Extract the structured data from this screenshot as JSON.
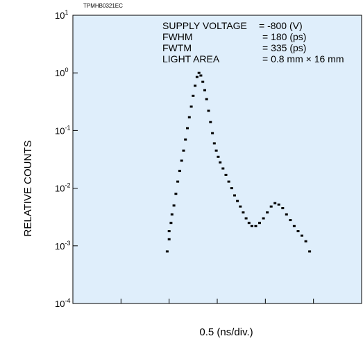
{
  "figure_code": "TPMHB0321EC",
  "annotations": [
    {
      "label": "SUPPLY VOLTAGE",
      "value": "= -800 (V)"
    },
    {
      "label": "FWHM",
      "value": "= 180 (ps)"
    },
    {
      "label": "FWTM",
      "value": "= 335 (ps)"
    },
    {
      "label": "LIGHT AREA",
      "value": "= 0.8 mm × 16 mm"
    }
  ],
  "chart_data": {
    "type": "scatter",
    "title": "",
    "xlabel": "0.5 (ns/div.)",
    "ylabel": "RELATIVE COUNTS",
    "yscale": "log",
    "ylim": [
      0.0001,
      10
    ],
    "xlim": [
      0,
      3
    ],
    "x_divisions": 6,
    "grid": false,
    "yticks": [
      {
        "base": "10",
        "exp": "1",
        "value": 10
      },
      {
        "base": "10",
        "exp": "0",
        "value": 1
      },
      {
        "base": "10",
        "exp": "-1",
        "value": 0.1
      },
      {
        "base": "10",
        "exp": "-2",
        "value": 0.01
      },
      {
        "base": "10",
        "exp": "-3",
        "value": 0.001
      },
      {
        "base": "10",
        "exp": "-4",
        "value": 0.0001
      }
    ],
    "background_color": "#dfeefb",
    "marker_color": "#000000",
    "series": [
      {
        "points": [
          [
            0.98,
            0.0008
          ],
          [
            1.0,
            0.0013
          ],
          [
            1.0,
            0.0018
          ],
          [
            1.02,
            0.0025
          ],
          [
            1.03,
            0.0035
          ],
          [
            1.05,
            0.005
          ],
          [
            1.07,
            0.008
          ],
          [
            1.09,
            0.013
          ],
          [
            1.11,
            0.02
          ],
          [
            1.13,
            0.03
          ],
          [
            1.15,
            0.045
          ],
          [
            1.17,
            0.07
          ],
          [
            1.19,
            0.11
          ],
          [
            1.21,
            0.17
          ],
          [
            1.23,
            0.26
          ],
          [
            1.25,
            0.4
          ],
          [
            1.27,
            0.6
          ],
          [
            1.29,
            0.85
          ],
          [
            1.31,
            1.0
          ],
          [
            1.33,
            0.9
          ],
          [
            1.35,
            0.7
          ],
          [
            1.37,
            0.5
          ],
          [
            1.39,
            0.35
          ],
          [
            1.41,
            0.22
          ],
          [
            1.43,
            0.14
          ],
          [
            1.45,
            0.09
          ],
          [
            1.47,
            0.06
          ],
          [
            1.49,
            0.045
          ],
          [
            1.51,
            0.035
          ],
          [
            1.53,
            0.028
          ],
          [
            1.56,
            0.022
          ],
          [
            1.59,
            0.017
          ],
          [
            1.62,
            0.013
          ],
          [
            1.65,
            0.01
          ],
          [
            1.68,
            0.0075
          ],
          [
            1.71,
            0.006
          ],
          [
            1.74,
            0.0048
          ],
          [
            1.77,
            0.0038
          ],
          [
            1.8,
            0.003
          ],
          [
            1.83,
            0.0025
          ],
          [
            1.86,
            0.0022
          ],
          [
            1.9,
            0.0022
          ],
          [
            1.94,
            0.0025
          ],
          [
            1.98,
            0.003
          ],
          [
            2.02,
            0.0038
          ],
          [
            2.06,
            0.0048
          ],
          [
            2.1,
            0.0055
          ],
          [
            2.14,
            0.0052
          ],
          [
            2.18,
            0.0045
          ],
          [
            2.22,
            0.0035
          ],
          [
            2.26,
            0.0028
          ],
          [
            2.3,
            0.0022
          ],
          [
            2.34,
            0.0018
          ],
          [
            2.38,
            0.0015
          ],
          [
            2.42,
            0.0012
          ],
          [
            2.46,
            0.0008
          ]
        ]
      }
    ]
  }
}
